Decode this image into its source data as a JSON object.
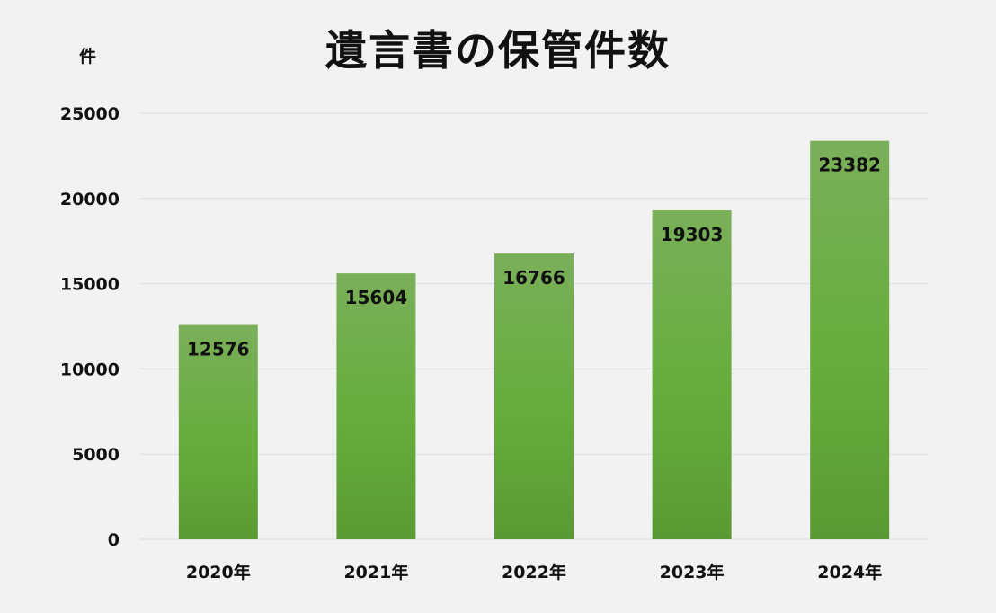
{
  "chart_data": {
    "type": "bar",
    "title": "遺言書の保管件数",
    "ylabel": "件",
    "xlabel": "",
    "categories": [
      "2020年",
      "2021年",
      "2022年",
      "2023年",
      "2024年"
    ],
    "values": [
      12576,
      15604,
      16766,
      19303,
      23382
    ],
    "ylim": [
      0,
      25000
    ],
    "yticks": [
      0,
      5000,
      10000,
      15000,
      20000,
      25000
    ],
    "grid": true,
    "legend": "none",
    "data_labels": true,
    "colors": {
      "bar_top": "#7aaf5a",
      "bar_mid": "#66ad3c",
      "bar_bottom": "#5a9a34",
      "grid": "#d6dfe8",
      "background": "#f2f2f2",
      "text": "#111111"
    }
  }
}
